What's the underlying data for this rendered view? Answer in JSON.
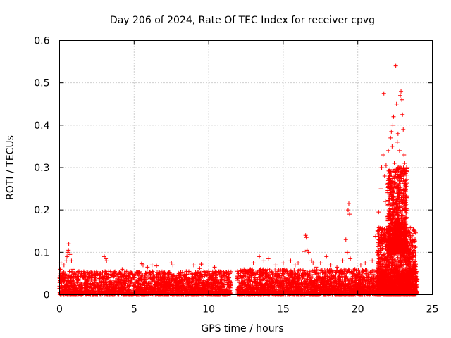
{
  "chart_data": {
    "type": "scatter",
    "title": "Day 206 of 2024, Rate Of TEC Index for receiver cpvg",
    "xlabel": "GPS time / hours",
    "ylabel": "ROTI / TECUs",
    "xlim": [
      0,
      25
    ],
    "ylim": [
      0,
      0.6
    ],
    "xticks": [
      0,
      5,
      10,
      15,
      20,
      25
    ],
    "yticks": [
      0,
      0.1,
      0.2,
      0.3,
      0.4,
      0.5,
      0.6
    ],
    "ytick_labels": [
      "0",
      "0.1",
      "0.2",
      "0.3",
      "0.4",
      "0.5",
      "0.6"
    ],
    "grid": true,
    "marker": "+",
    "color": "#ff0000",
    "series": [
      {
        "name": "ROTI",
        "points": [
          [
            0.05,
            0.06
          ],
          [
            0.1,
            0.075
          ],
          [
            0.2,
            0.05
          ],
          [
            0.3,
            0.07
          ],
          [
            0.45,
            0.08
          ],
          [
            0.5,
            0.09
          ],
          [
            0.55,
            0.1
          ],
          [
            0.6,
            0.105
          ],
          [
            0.62,
            0.12
          ],
          [
            0.7,
            0.095
          ],
          [
            0.8,
            0.08
          ],
          [
            0.9,
            0.06
          ],
          [
            1.3,
            0.055
          ],
          [
            1.6,
            0.05
          ],
          [
            1.9,
            0.052
          ],
          [
            2.4,
            0.045
          ],
          [
            2.7,
            0.05
          ],
          [
            3.0,
            0.09
          ],
          [
            3.1,
            0.085
          ],
          [
            3.15,
            0.08
          ],
          [
            3.3,
            0.055
          ],
          [
            3.5,
            0.045
          ],
          [
            4.0,
            0.05
          ],
          [
            4.2,
            0.06
          ],
          [
            4.5,
            0.055
          ],
          [
            4.8,
            0.05
          ],
          [
            5.5,
            0.073
          ],
          [
            5.6,
            0.07
          ],
          [
            5.9,
            0.065
          ],
          [
            6.2,
            0.07
          ],
          [
            6.5,
            0.068
          ],
          [
            7.0,
            0.05
          ],
          [
            7.5,
            0.075
          ],
          [
            7.6,
            0.07
          ],
          [
            8.0,
            0.05
          ],
          [
            8.5,
            0.055
          ],
          [
            9.0,
            0.07
          ],
          [
            9.4,
            0.062
          ],
          [
            9.5,
            0.072
          ],
          [
            10.0,
            0.055
          ],
          [
            10.4,
            0.065
          ],
          [
            10.8,
            0.055
          ],
          [
            11.2,
            0.05
          ],
          [
            12.3,
            0.055
          ],
          [
            12.8,
            0.06
          ],
          [
            13.0,
            0.075
          ],
          [
            13.4,
            0.09
          ],
          [
            13.7,
            0.08
          ],
          [
            14.0,
            0.085
          ],
          [
            14.5,
            0.07
          ],
          [
            15.0,
            0.075
          ],
          [
            15.5,
            0.08
          ],
          [
            15.8,
            0.07
          ],
          [
            16.0,
            0.075
          ],
          [
            16.4,
            0.102
          ],
          [
            16.5,
            0.14
          ],
          [
            16.55,
            0.135
          ],
          [
            16.6,
            0.105
          ],
          [
            16.7,
            0.1
          ],
          [
            16.9,
            0.08
          ],
          [
            17.0,
            0.075
          ],
          [
            17.2,
            0.065
          ],
          [
            17.5,
            0.075
          ],
          [
            17.9,
            0.09
          ],
          [
            18.2,
            0.07
          ],
          [
            18.6,
            0.065
          ],
          [
            19.0,
            0.08
          ],
          [
            19.2,
            0.13
          ],
          [
            19.3,
            0.1
          ],
          [
            19.35,
            0.2
          ],
          [
            19.4,
            0.215
          ],
          [
            19.45,
            0.19
          ],
          [
            19.5,
            0.085
          ],
          [
            19.8,
            0.06
          ],
          [
            20.2,
            0.07
          ],
          [
            20.5,
            0.075
          ],
          [
            20.9,
            0.08
          ],
          [
            21.0,
            0.08
          ],
          [
            21.2,
            0.138
          ],
          [
            21.3,
            0.1
          ],
          [
            21.4,
            0.195
          ],
          [
            21.5,
            0.11
          ],
          [
            21.55,
            0.25
          ],
          [
            21.6,
            0.3
          ],
          [
            21.7,
            0.33
          ],
          [
            21.75,
            0.475
          ],
          [
            21.8,
            0.28
          ],
          [
            21.85,
            0.22
          ],
          [
            21.9,
            0.305
          ],
          [
            22.0,
            0.26
          ],
          [
            22.05,
            0.34
          ],
          [
            22.1,
            0.2
          ],
          [
            22.15,
            0.28
          ],
          [
            22.2,
            0.37
          ],
          [
            22.25,
            0.385
          ],
          [
            22.3,
            0.35
          ],
          [
            22.35,
            0.4
          ],
          [
            22.4,
            0.42
          ],
          [
            22.45,
            0.31
          ],
          [
            22.5,
            0.25
          ],
          [
            22.55,
            0.54
          ],
          [
            22.6,
            0.45
          ],
          [
            22.65,
            0.36
          ],
          [
            22.7,
            0.38
          ],
          [
            22.75,
            0.3
          ],
          [
            22.8,
            0.34
          ],
          [
            22.85,
            0.47
          ],
          [
            22.9,
            0.48
          ],
          [
            22.95,
            0.46
          ],
          [
            23.0,
            0.425
          ],
          [
            23.05,
            0.39
          ],
          [
            23.1,
            0.33
          ],
          [
            23.15,
            0.31
          ],
          [
            23.2,
            0.25
          ],
          [
            23.3,
            0.2
          ],
          [
            23.4,
            0.15
          ],
          [
            23.5,
            0.12
          ],
          [
            23.6,
            0.1
          ],
          [
            23.7,
            0.09
          ],
          [
            23.8,
            0.075
          ],
          [
            23.9,
            0.07
          ],
          [
            0.3,
            0.03
          ],
          [
            1.0,
            0.025
          ],
          [
            2.0,
            0.02
          ],
          [
            3.0,
            0.035
          ],
          [
            4.0,
            0.03
          ],
          [
            5.0,
            0.025
          ],
          [
            6.0,
            0.03
          ],
          [
            7.0,
            0.02
          ],
          [
            8.0,
            0.025
          ],
          [
            9.0,
            0.03
          ],
          [
            10.0,
            0.025
          ],
          [
            11.0,
            0.02
          ],
          [
            12.5,
            0.03
          ],
          [
            13.5,
            0.035
          ],
          [
            14.5,
            0.03
          ],
          [
            15.5,
            0.025
          ],
          [
            16.5,
            0.03
          ],
          [
            17.5,
            0.025
          ],
          [
            18.5,
            0.03
          ],
          [
            19.5,
            0.035
          ],
          [
            20.5,
            0.03
          ],
          [
            21.5,
            0.04
          ],
          [
            22.5,
            0.05
          ],
          [
            23.5,
            0.045
          ]
        ],
        "density_bands": [
          {
            "x": [
              0.0,
              11.5
            ],
            "y": [
              0.0,
              0.055
            ]
          },
          {
            "x": [
              11.9,
              24.0
            ],
            "y": [
              0.0,
              0.06
            ]
          },
          {
            "x": [
              21.3,
              23.9
            ],
            "y": [
              0.0,
              0.16
            ]
          },
          {
            "x": [
              22.0,
              23.3
            ],
            "y": [
              0.1,
              0.3
            ]
          }
        ]
      }
    ]
  }
}
